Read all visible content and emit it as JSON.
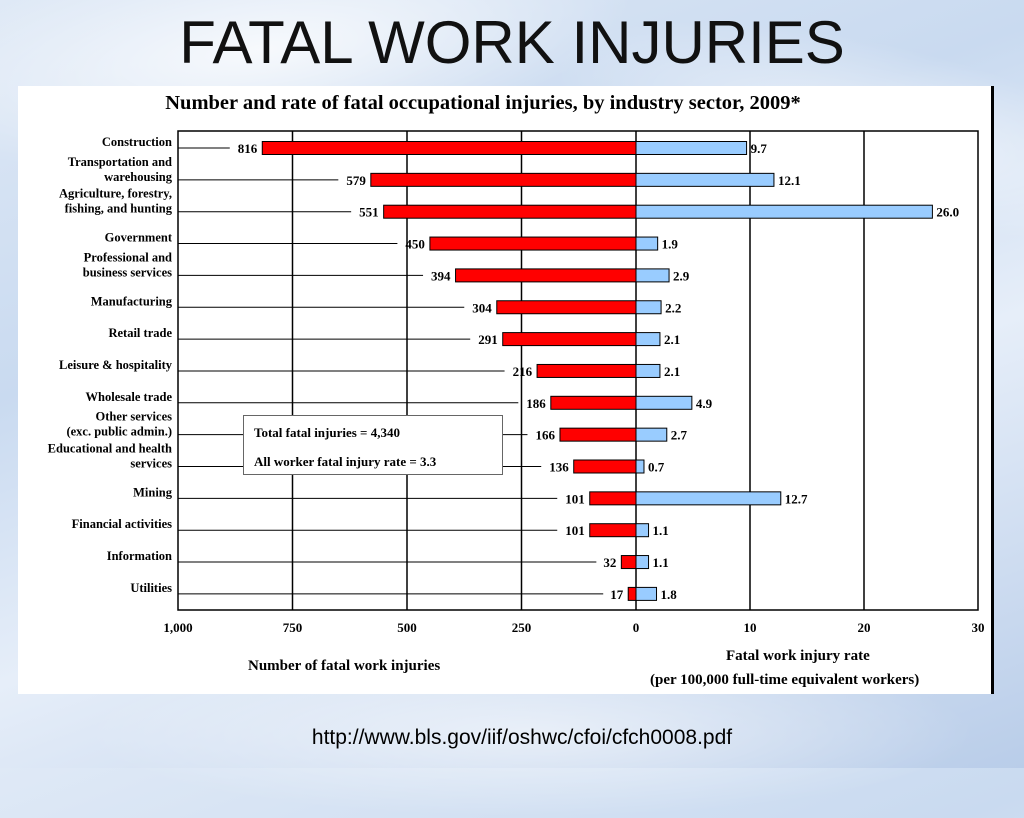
{
  "slide": {
    "title": "FATAL WORK INJURIES",
    "source_url": "http://www.bls.gov/iif/oshwc/cfoi/cfch0008.pdf"
  },
  "chart_data": {
    "type": "bar",
    "title": "Number and rate of fatal occupational injuries, by industry sector, 2009*",
    "categories": [
      "Construction",
      "Transportation and warehousing",
      "Agriculture, forestry, fishing, and hunting",
      "Government",
      "Professional and business services",
      "Manufacturing",
      "Retail trade",
      "Leisure & hospitality",
      "Wholesale trade",
      "Other services (exc. public admin.)",
      "Educational and health services",
      "Mining",
      "Financial activities",
      "Information",
      "Utilities"
    ],
    "category_lines": [
      [
        "Construction"
      ],
      [
        "Transportation and",
        "warehousing"
      ],
      [
        "Agriculture, forestry,",
        "fishing, and hunting"
      ],
      [
        "Government"
      ],
      [
        "Professional and",
        "business services"
      ],
      [
        "Manufacturing"
      ],
      [
        "Retail trade"
      ],
      [
        "Leisure & hospitality"
      ],
      [
        "Wholesale trade"
      ],
      [
        "Other services",
        "(exc. public admin.)"
      ],
      [
        "Educational and health",
        "services"
      ],
      [
        "Mining"
      ],
      [
        "Financial activities"
      ],
      [
        "Information"
      ],
      [
        "Utilities"
      ]
    ],
    "series": [
      {
        "values": [
          816,
          579,
          551,
          450,
          394,
          304,
          291,
          216,
          186,
          166,
          136,
          101,
          101,
          32,
          17
        ],
        "value_labels": [
          "816",
          "579",
          "551",
          "450",
          "394",
          "304",
          "291",
          "216",
          "186",
          "166",
          "136",
          "101",
          "101",
          "32",
          "17"
        ],
        "color": "#ff0000",
        "axis": "left"
      },
      {
        "values": [
          9.7,
          12.1,
          26.0,
          1.9,
          2.9,
          2.2,
          2.1,
          2.1,
          4.9,
          2.7,
          0.7,
          12.7,
          1.1,
          1.1,
          1.8
        ],
        "value_labels": [
          "9.7",
          "12.1",
          "26.0",
          "1.9",
          "2.9",
          "2.2",
          "2.1",
          "2.1",
          "4.9",
          "2.7",
          "0.7",
          "12.7",
          "1.1",
          "1.1",
          "1.8"
        ],
        "color": "#99ccff",
        "axis": "right"
      }
    ],
    "left_axis": {
      "label": "Number of fatal work injuries",
      "range": [
        1000,
        0
      ],
      "ticks": [
        1000,
        750,
        500,
        250,
        0
      ],
      "tick_labels": [
        "1,000",
        "750",
        "500",
        "250",
        "0"
      ]
    },
    "right_axis": {
      "label_line1": "Fatal work injury rate",
      "label_line2": "(per 100,000 full-time equivalent workers)",
      "range": [
        0,
        30
      ],
      "ticks": [
        10,
        20,
        30
      ],
      "tick_labels": [
        "10",
        "20",
        "30"
      ]
    },
    "grid": true,
    "annotation": {
      "line1": "Total fatal injuries = 4,340",
      "line2": "All worker fatal injury rate = 3.3"
    },
    "colors": {
      "count_bar": "#ff0000",
      "rate_bar": "#99ccff",
      "outline": "#000000"
    }
  }
}
